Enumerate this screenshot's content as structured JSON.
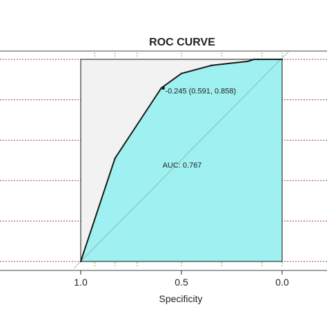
{
  "chart_data": {
    "type": "line",
    "title": "ROC CURVE",
    "xlabel": "Specificity",
    "ylabel": "",
    "x_reversed": true,
    "xlim": [
      1.0,
      0.0
    ],
    "ylim": [
      0.0,
      1.0
    ],
    "x_ticks": [
      "1.0",
      "0.5",
      "0.0"
    ],
    "x_tick_values": [
      1.0,
      0.5,
      0.0
    ],
    "y_gridlines": [
      0.0,
      0.2,
      0.4,
      0.6,
      0.8,
      1.0
    ],
    "series": [
      {
        "specificity": [
          1.0,
          0.83,
          0.6,
          0.5,
          0.35,
          0.17,
          0.14,
          0.12,
          0.0
        ],
        "sensitivity": [
          0.0,
          0.51,
          0.858,
          0.93,
          0.97,
          0.99,
          1.0,
          1.0,
          1.0
        ]
      }
    ],
    "threshold_point": {
      "specificity": 0.591,
      "sensitivity": 0.858,
      "label": "-0.245 (0.591, 0.858)"
    },
    "auc_label": "AUC: 0.767",
    "colors": {
      "fill": "#9ff0f0",
      "background_panel": "#f2f2f2",
      "curve": "#1a1a1a",
      "gridline": "#aa3344",
      "tick_marks": "#55bb55",
      "diagonal": "#88aaaa"
    }
  }
}
